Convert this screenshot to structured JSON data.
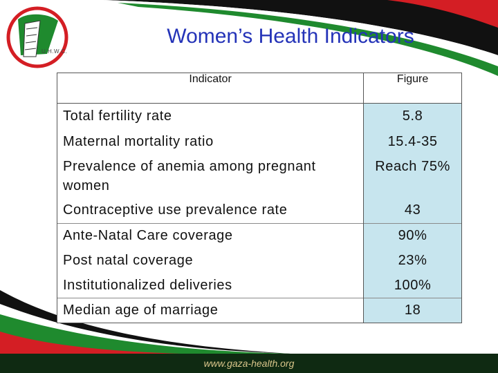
{
  "slide": {
    "title": "Women’s Health Indicators",
    "logo_text": "U.H.W.C.",
    "footer_url": "www.gaza-health.org",
    "colors": {
      "title": "#2433b8",
      "figure_cell": "#c7e5ee",
      "green": "#1f8a2e",
      "red": "#d41e24",
      "black": "#111111"
    }
  },
  "table": {
    "headers": {
      "indicator": "Indicator",
      "figure": "Figure"
    },
    "rows": [
      {
        "indicator": "Total fertility rate",
        "figure": "5.8"
      },
      {
        "indicator": "Maternal mortality ratio",
        "figure": "15.4-35"
      },
      {
        "indicator": "Prevalence of anemia among pregnant women",
        "figure": "Reach 75%"
      },
      {
        "indicator": "Contraceptive use prevalence rate",
        "figure": "43"
      },
      {
        "indicator": "Ante-Natal Care coverage",
        "figure": "90%"
      },
      {
        "indicator": "Post natal coverage",
        "figure": "23%"
      },
      {
        "indicator": "Institutionalized deliveries",
        "figure": "100%"
      },
      {
        "indicator": "Median age of marriage",
        "figure": "18"
      }
    ]
  }
}
